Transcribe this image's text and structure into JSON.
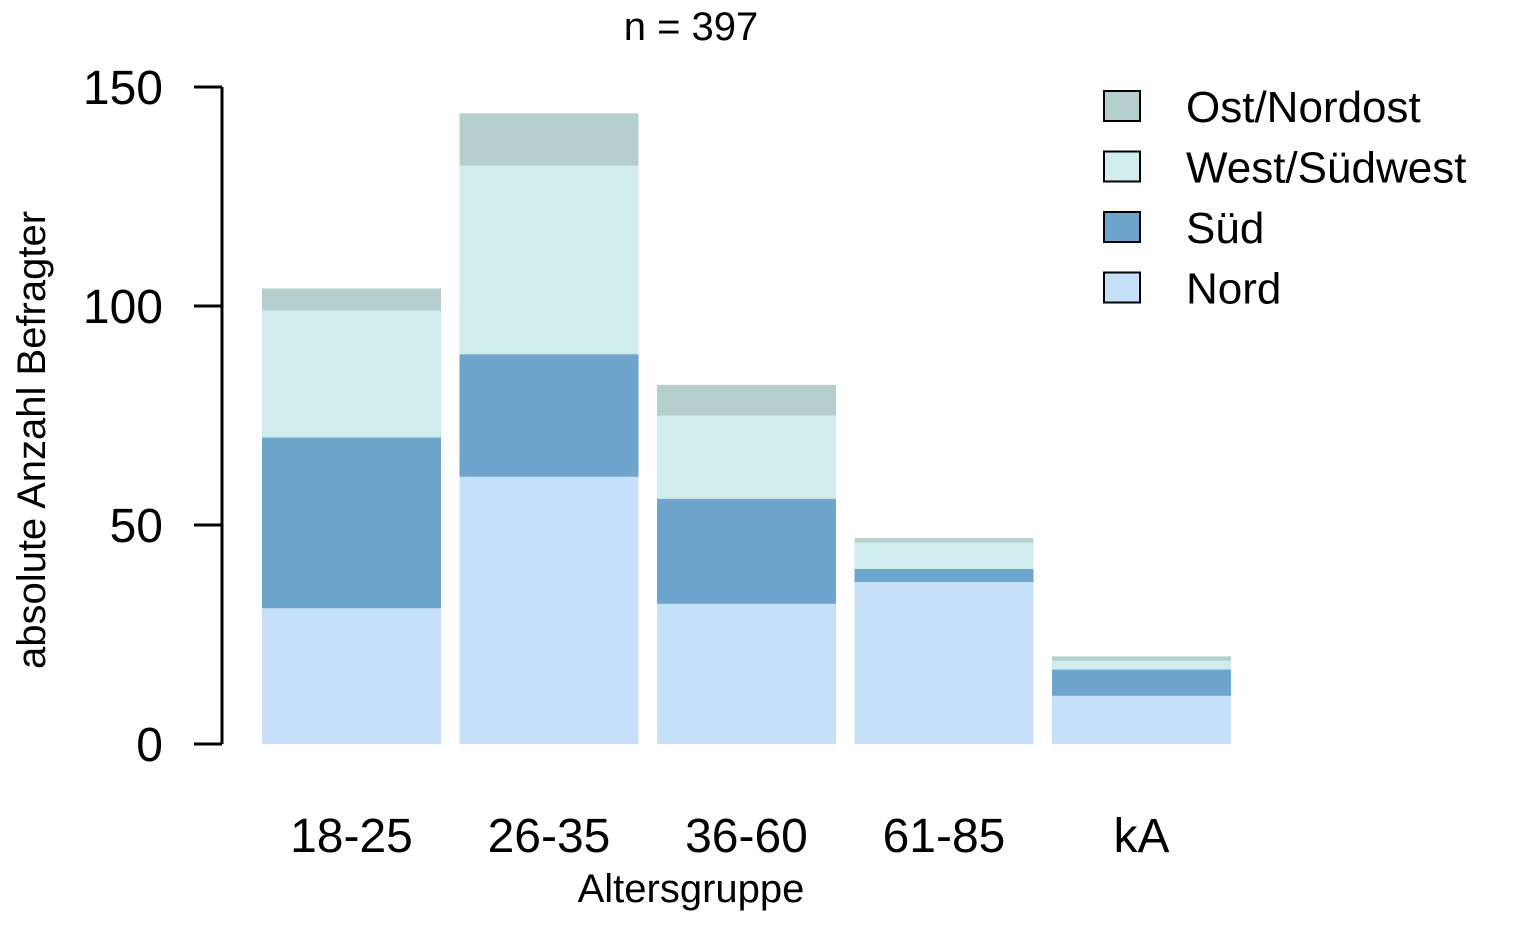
{
  "chart_data": {
    "type": "bar",
    "stacked": true,
    "title": "n = 397",
    "xlabel": "Altersgruppe",
    "ylabel": "absolute Anzahl Befragter",
    "categories": [
      "18-25",
      "26-35",
      "36-60",
      "61-85",
      "kA"
    ],
    "ylim": [
      0,
      150
    ],
    "yticks": [
      0,
      50,
      100,
      150
    ],
    "grid": false,
    "legend_position": "top-right",
    "series": [
      {
        "name": "Nord",
        "color": "#c6e0fa",
        "values": [
          31,
          61,
          32,
          37,
          11
        ]
      },
      {
        "name": "Süd",
        "color": "#6ea5cc",
        "values": [
          39,
          28,
          24,
          3,
          6
        ]
      },
      {
        "name": "West/Südwest",
        "color": "#d0ecec",
        "values": [
          29,
          43,
          19,
          6,
          2
        ]
      },
      {
        "name": "Ost/Nordost",
        "color": "#b5cfcf",
        "values": [
          5,
          12,
          7,
          1,
          1
        ]
      }
    ],
    "legend_order": [
      "Ost/Nordost",
      "West/Südwest",
      "Süd",
      "Nord"
    ]
  }
}
